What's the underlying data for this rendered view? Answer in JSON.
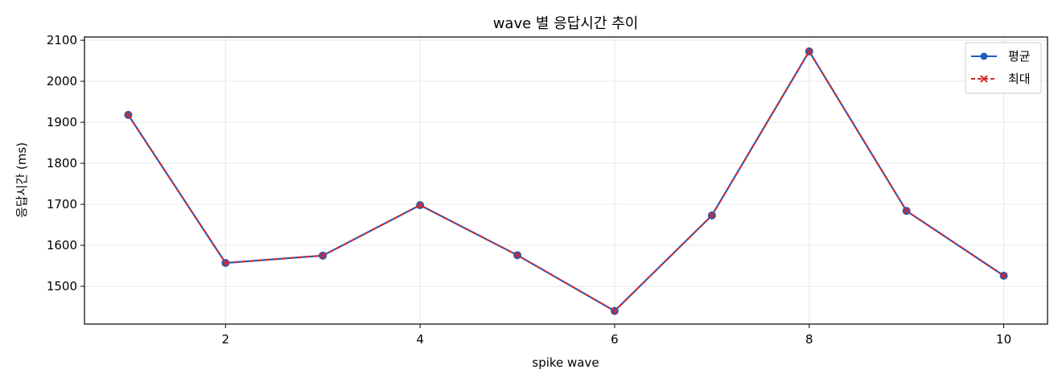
{
  "chart_data": {
    "type": "line",
    "title": "wave 별 응답시간 추이",
    "xlabel": "spike wave",
    "ylabel": "응답시간 (ms)",
    "x": [
      1,
      2,
      3,
      4,
      5,
      6,
      7,
      8,
      9,
      10
    ],
    "xlim": [
      0.55,
      10.45
    ],
    "ylim": [
      1408,
      2108
    ],
    "xticks": [
      2,
      4,
      6,
      8,
      10
    ],
    "yticks": [
      1500,
      1600,
      1700,
      1800,
      1900,
      2000,
      2100
    ],
    "grid": true,
    "legend_position": "top-right",
    "series": [
      {
        "name": "평균",
        "values": [
          1918,
          1557,
          1575,
          1698,
          1576,
          1440,
          1673,
          2073,
          1684,
          1526
        ],
        "color": "#1f5fbf",
        "line_style": "solid",
        "marker": "circle"
      },
      {
        "name": "최대",
        "values": [
          1918,
          1557,
          1575,
          1698,
          1576,
          1440,
          1673,
          2073,
          1684,
          1526
        ],
        "color": "#d62728",
        "line_style": "dashed",
        "marker": "x"
      }
    ]
  }
}
